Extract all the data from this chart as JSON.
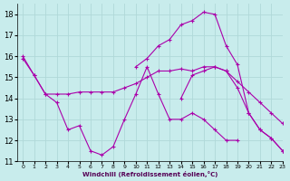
{
  "xlabel": "Windchill (Refroidissement éolien,°C)",
  "background_color": "#c8ecec",
  "grid_color": "#b0d8d8",
  "line_color": "#aa00aa",
  "xlim": [
    -0.5,
    23
  ],
  "ylim": [
    11,
    18.5
  ],
  "yticks": [
    11,
    12,
    13,
    14,
    15,
    16,
    17,
    18
  ],
  "xticks": [
    0,
    1,
    2,
    3,
    4,
    5,
    6,
    7,
    8,
    9,
    10,
    11,
    12,
    13,
    14,
    15,
    16,
    17,
    18,
    19,
    20,
    21,
    22,
    23
  ],
  "series": [
    {
      "x": [
        0,
        1,
        2,
        3,
        4,
        5,
        6,
        7,
        8,
        9,
        10,
        11,
        12,
        13,
        14,
        15,
        16,
        17,
        18,
        19
      ],
      "y": [
        16.0,
        15.1,
        14.2,
        13.8,
        12.5,
        12.7,
        11.5,
        11.3,
        11.7,
        13.0,
        14.2,
        15.5,
        14.2,
        13.0,
        13.0,
        13.3,
        13.0,
        12.5,
        12.0,
        12.0
      ]
    },
    {
      "x": [
        0,
        1,
        2,
        3,
        4,
        5,
        6,
        7,
        8,
        9,
        10,
        11,
        12,
        13,
        14,
        15,
        16,
        17,
        18,
        19,
        20,
        21,
        22,
        23
      ],
      "y": [
        15.9,
        15.1,
        14.2,
        14.2,
        14.2,
        14.3,
        14.3,
        14.3,
        14.3,
        14.5,
        14.7,
        15.0,
        15.3,
        15.3,
        15.4,
        15.3,
        15.5,
        15.5,
        15.3,
        14.8,
        14.3,
        13.8,
        13.3,
        12.8
      ]
    },
    {
      "x": [
        10,
        11,
        12,
        13,
        14,
        15,
        16,
        17,
        18,
        19,
        20,
        21,
        22,
        23
      ],
      "y": [
        15.5,
        15.9,
        16.5,
        16.8,
        17.5,
        17.7,
        18.1,
        18.0,
        16.5,
        15.6,
        13.3,
        12.5,
        12.1,
        11.5
      ]
    },
    {
      "x": [
        14,
        15,
        16,
        17,
        18,
        19,
        20,
        21,
        22,
        23
      ],
      "y": [
        14.0,
        15.1,
        15.3,
        15.5,
        15.3,
        14.5,
        13.3,
        12.5,
        12.1,
        11.5
      ]
    }
  ]
}
